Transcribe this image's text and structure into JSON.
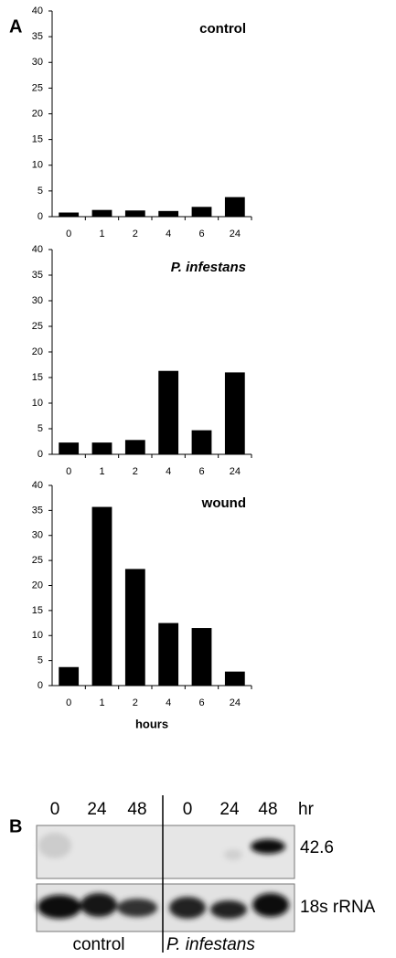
{
  "panel_labels": [
    "A",
    "B"
  ],
  "chart_data": [
    {
      "type": "bar",
      "title": "control",
      "categories": [
        "0",
        "1",
        "2",
        "4",
        "6",
        "24"
      ],
      "values": [
        0.8,
        1.3,
        1.2,
        1.1,
        1.9,
        3.8
      ],
      "color": "#000000",
      "ylim": [
        0,
        40
      ],
      "yticks": [
        0,
        5,
        10,
        15,
        20,
        25,
        30,
        35,
        40
      ]
    },
    {
      "type": "bar",
      "title": "P. infestans",
      "categories": [
        "0",
        "1",
        "2",
        "4",
        "6",
        "24"
      ],
      "values": [
        2.3,
        2.3,
        2.8,
        16.3,
        4.7,
        16.0
      ],
      "color": "#000000",
      "ylim": [
        0,
        40
      ],
      "yticks": [
        0,
        5,
        10,
        15,
        20,
        25,
        30,
        35,
        40
      ]
    },
    {
      "type": "bar",
      "title": "wound",
      "x_label": "hours",
      "categories": [
        "0",
        "1",
        "2",
        "4",
        "6",
        "24"
      ],
      "values": [
        3.7,
        35.7,
        23.3,
        12.5,
        11.5,
        2.8
      ],
      "color": "#000000",
      "ylim": [
        0,
        40
      ],
      "yticks": [
        0,
        5,
        10,
        15,
        20,
        25,
        30,
        35,
        40
      ]
    }
  ],
  "blot": {
    "lanes": [
      "0",
      "24",
      "48",
      "0",
      "24",
      "48"
    ],
    "unit": "hr",
    "bands": [
      "42.6",
      "18s rRNA"
    ],
    "groups": [
      "control",
      "P. infestans"
    ]
  }
}
